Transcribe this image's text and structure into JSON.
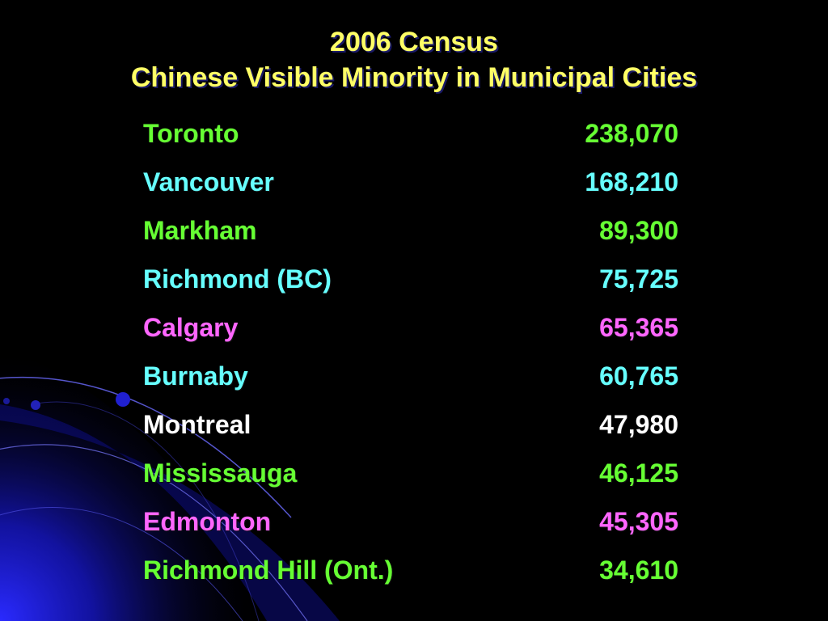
{
  "slide": {
    "title_line1": "2006 Census",
    "title_line2": "Chinese Visible Minority in Municipal Cities"
  },
  "rows": [
    {
      "city": "Toronto",
      "value": "238,070",
      "color": "#66FF33"
    },
    {
      "city": "Vancouver",
      "value": "168,210",
      "color": "#66FFFF"
    },
    {
      "city": "Markham",
      "value": "89,300",
      "color": "#66FF33"
    },
    {
      "city": "Richmond (BC)",
      "value": "75,725",
      "color": "#66FFFF"
    },
    {
      "city": "Calgary",
      "value": "65,365",
      "color": "#FF66FF"
    },
    {
      "city": "Burnaby",
      "value": "60,765",
      "color": "#66FFFF"
    },
    {
      "city": "Montreal",
      "value": "47,980",
      "color": "#FFFFFF"
    },
    {
      "city": "Mississauga",
      "value": "46,125",
      "color": "#66FF33"
    },
    {
      "city": "Edmonton",
      "value": "45,305",
      "color": "#FF66FF"
    },
    {
      "city": "Richmond Hill (Ont.)",
      "value": "34,610",
      "color": "#66FF33"
    }
  ],
  "theme": {
    "background": "#000000",
    "title_color": "#FFFF66",
    "accent_blue": "#1a1acc"
  }
}
